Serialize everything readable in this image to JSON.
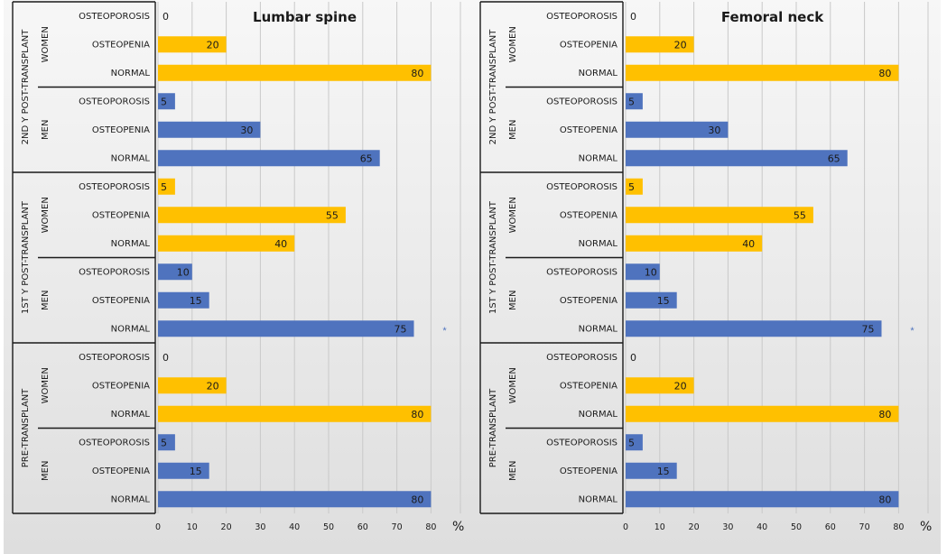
{
  "chart_data": [
    {
      "type": "bar",
      "orientation": "horizontal",
      "title": "Lumbar spine",
      "xlabel": "%",
      "xlim": [
        0,
        80
      ],
      "x_ticks": [
        "0",
        "10",
        "20",
        "30",
        "40",
        "50",
        "60",
        "70",
        "80"
      ],
      "grid": true,
      "colors": {
        "women": "#ffc000",
        "men": "#4f73be"
      },
      "phases": [
        {
          "label": "2ND Y POST-TRANSPLANT",
          "groups": [
            {
              "label": "WOMEN",
              "color": "#ffc000",
              "rows": [
                {
                  "category": "OSTEOPOROSIS",
                  "value": 0,
                  "text": "0"
                },
                {
                  "category": "OSTEOPENIA",
                  "value": 20,
                  "text": "20"
                },
                {
                  "category": "NORMAL",
                  "value": 80,
                  "text": "80"
                }
              ]
            },
            {
              "label": "MEN",
              "color": "#4f73be",
              "rows": [
                {
                  "category": "OSTEOPOROSIS",
                  "value": 5,
                  "text": "5"
                },
                {
                  "category": "OSTEOPENIA",
                  "value": 30,
                  "text": "30"
                },
                {
                  "category": "NORMAL",
                  "value": 65,
                  "text": "65"
                }
              ]
            }
          ]
        },
        {
          "label": "1ST Y POST-TRANSPLANT",
          "groups": [
            {
              "label": "WOMEN",
              "color": "#ffc000",
              "rows": [
                {
                  "category": "OSTEOPOROSIS",
                  "value": 5,
                  "text": "5"
                },
                {
                  "category": "OSTEOPENIA",
                  "value": 55,
                  "text": "55"
                },
                {
                  "category": "NORMAL",
                  "value": 40,
                  "text": "40"
                }
              ]
            },
            {
              "label": "MEN",
              "color": "#4f73be",
              "rows": [
                {
                  "category": "OSTEOPOROSIS",
                  "value": 10,
                  "text": "10"
                },
                {
                  "category": "OSTEOPENIA",
                  "value": 15,
                  "text": "15"
                },
                {
                  "category": "NORMAL",
                  "value": 75,
                  "text": "75",
                  "marker": "*"
                }
              ]
            }
          ]
        },
        {
          "label": "PRE-TRANSPLANT",
          "groups": [
            {
              "label": "WOMEN",
              "color": "#ffc000",
              "rows": [
                {
                  "category": "OSTEOPOROSIS",
                  "value": 0,
                  "text": "0"
                },
                {
                  "category": "OSTEOPENIA",
                  "value": 20,
                  "text": "20"
                },
                {
                  "category": "NORMAL",
                  "value": 80,
                  "text": "80"
                }
              ]
            },
            {
              "label": "MEN",
              "color": "#4f73be",
              "rows": [
                {
                  "category": "OSTEOPOROSIS",
                  "value": 5,
                  "text": "5"
                },
                {
                  "category": "OSTEOPENIA",
                  "value": 15,
                  "text": "15"
                },
                {
                  "category": "NORMAL",
                  "value": 80,
                  "text": "80"
                }
              ]
            }
          ]
        }
      ]
    },
    {
      "type": "bar",
      "orientation": "horizontal",
      "title": "Femoral neck",
      "xlabel": "%",
      "xlim": [
        0,
        80
      ],
      "x_ticks": [
        "0",
        "10",
        "20",
        "30",
        "40",
        "50",
        "60",
        "70",
        "80"
      ],
      "grid": true,
      "colors": {
        "women": "#ffc000",
        "men": "#4f73be"
      },
      "phases": [
        {
          "label": "2ND Y POST-TRANSPLANT",
          "groups": [
            {
              "label": "WOMEN",
              "color": "#ffc000",
              "rows": [
                {
                  "category": "OSTEOPOROSIS",
                  "value": 0,
                  "text": "0"
                },
                {
                  "category": "OSTEOPENIA",
                  "value": 20,
                  "text": "20"
                },
                {
                  "category": "NORMAL",
                  "value": 80,
                  "text": "80"
                }
              ]
            },
            {
              "label": "MEN",
              "color": "#4f73be",
              "rows": [
                {
                  "category": "OSTEOPOROSIS",
                  "value": 5,
                  "text": "5"
                },
                {
                  "category": "OSTEOPENIA",
                  "value": 30,
                  "text": "30"
                },
                {
                  "category": "NORMAL",
                  "value": 65,
                  "text": "65"
                }
              ]
            }
          ]
        },
        {
          "label": "1ST Y POST-TRANSPLANT",
          "groups": [
            {
              "label": "WOMEN",
              "color": "#ffc000",
              "rows": [
                {
                  "category": "OSTEOPOROSIS",
                  "value": 5,
                  "text": "5"
                },
                {
                  "category": "OSTEOPENIA",
                  "value": 55,
                  "text": "55"
                },
                {
                  "category": "NORMAL",
                  "value": 40,
                  "text": "40"
                }
              ]
            },
            {
              "label": "MEN",
              "color": "#4f73be",
              "rows": [
                {
                  "category": "OSTEOPOROSIS",
                  "value": 10,
                  "text": "10"
                },
                {
                  "category": "OSTEOPENIA",
                  "value": 15,
                  "text": "15"
                },
                {
                  "category": "NORMAL",
                  "value": 75,
                  "text": "75",
                  "marker": "*"
                }
              ]
            }
          ]
        },
        {
          "label": "PRE-TRANSPLANT",
          "groups": [
            {
              "label": "WOMEN",
              "color": "#ffc000",
              "rows": [
                {
                  "category": "OSTEOPOROSIS",
                  "value": 0,
                  "text": "0"
                },
                {
                  "category": "OSTEOPENIA",
                  "value": 20,
                  "text": "20"
                },
                {
                  "category": "NORMAL",
                  "value": 80,
                  "text": "80"
                }
              ]
            },
            {
              "label": "MEN",
              "color": "#4f73be",
              "rows": [
                {
                  "category": "OSTEOPOROSIS",
                  "value": 5,
                  "text": "5"
                },
                {
                  "category": "OSTEOPENIA",
                  "value": 15,
                  "text": "15"
                },
                {
                  "category": "NORMAL",
                  "value": 80,
                  "text": "80"
                }
              ]
            }
          ]
        }
      ]
    }
  ]
}
